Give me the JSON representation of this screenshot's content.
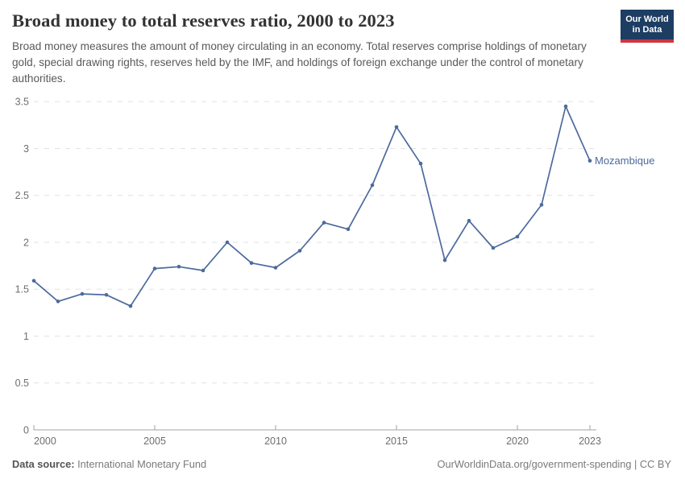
{
  "header": {
    "title": "Broad money to total reserves ratio, 2000 to 2023",
    "subtitle": "Broad money measures the amount of money circulating in an economy. Total reserves comprise holdings of monetary gold, special drawing rights, reserves held by the IMF, and holdings of foreign exchange under the control of monetary authorities.",
    "logo": {
      "line1": "Our World",
      "line2": "in Data"
    }
  },
  "chart_data": {
    "type": "line",
    "title": "Broad money to total reserves ratio, 2000 to 2023",
    "xlabel": "",
    "ylabel": "",
    "x": [
      2000,
      2001,
      2002,
      2003,
      2004,
      2005,
      2006,
      2007,
      2008,
      2009,
      2010,
      2011,
      2012,
      2013,
      2014,
      2015,
      2016,
      2017,
      2018,
      2019,
      2020,
      2021,
      2022,
      2023
    ],
    "series": [
      {
        "name": "Mozambique",
        "color": "#4c6a9c",
        "values": [
          1.59,
          1.37,
          1.45,
          1.44,
          1.32,
          1.72,
          1.74,
          1.7,
          2.0,
          1.78,
          1.73,
          1.91,
          2.21,
          2.14,
          2.61,
          3.23,
          2.84,
          1.81,
          2.23,
          1.94,
          2.06,
          2.4,
          3.45,
          2.87
        ]
      }
    ],
    "ylim": [
      0,
      3.5
    ],
    "yticks": [
      0,
      0.5,
      1,
      1.5,
      2,
      2.5,
      3,
      3.5
    ],
    "xticks": [
      2000,
      2005,
      2010,
      2015,
      2020,
      2023
    ],
    "grid": "horizontal-dashed",
    "legend_position": "end-of-line-label",
    "end_label": "Mozambique"
  },
  "colors": {
    "series_blue": "#4c6a9c",
    "grid": "#e2e2e2",
    "axis": "#a3a3a3",
    "axis_text": "#6e6e6e",
    "logo_navy": "#1d3d63",
    "logo_red": "#cf3541"
  },
  "footer": {
    "datasource_label": "Data source:",
    "datasource_value": "International Monetary Fund",
    "credit": "OurWorldinData.org/government-spending | CC BY"
  }
}
